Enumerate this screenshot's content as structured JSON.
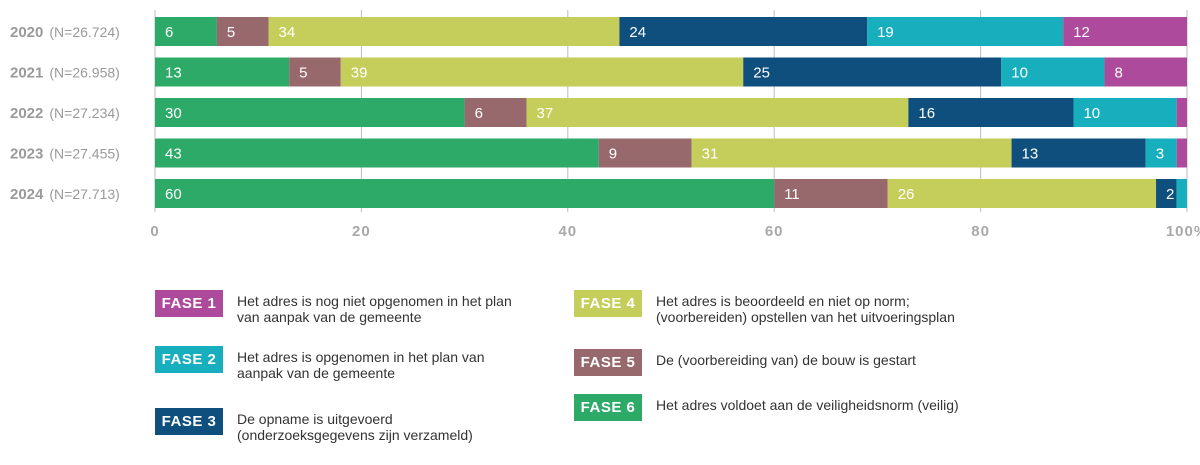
{
  "chart_data": {
    "type": "bar",
    "orientation": "horizontal",
    "stacked": true,
    "categories": [
      "2020",
      "2021",
      "2022",
      "2023",
      "2024"
    ],
    "category_notes": [
      "(N=26.724)",
      "(N=26.958)",
      "(N=27.234)",
      "(N=27.455)",
      "(N=27.713)"
    ],
    "series": [
      {
        "name": "FASE 6",
        "color": "#2daa68",
        "values": [
          6,
          13,
          30,
          43,
          60
        ]
      },
      {
        "name": "FASE 5",
        "color": "#98696c",
        "values": [
          5,
          5,
          6,
          9,
          11
        ]
      },
      {
        "name": "FASE 4",
        "color": "#c6ce5b",
        "values": [
          34,
          39,
          37,
          31,
          26
        ]
      },
      {
        "name": "FASE 3",
        "color": "#0f4f7e",
        "values": [
          24,
          25,
          16,
          13,
          2
        ]
      },
      {
        "name": "FASE 2",
        "color": "#17aebd",
        "values": [
          19,
          10,
          10,
          3,
          1
        ]
      },
      {
        "name": "FASE 1",
        "color": "#ad4a9c",
        "values": [
          12,
          8,
          1,
          1,
          0
        ]
      }
    ],
    "xlim": [
      0,
      100
    ],
    "xticks": [
      "0",
      "20",
      "40",
      "60",
      "80",
      "100%"
    ],
    "grid": true,
    "legend_position": "bottom"
  },
  "legend": [
    {
      "label": "FASE 1",
      "color": "#ad4a9c",
      "text": "Het adres is nog niet opgenomen in het plan van aanpak van de gemeente"
    },
    {
      "label": "FASE 2",
      "color": "#17aebd",
      "text": "Het adres is opgenomen in het plan van aanpak van de gemeente"
    },
    {
      "label": "FASE 3",
      "color": "#0f4f7e",
      "text": "De opname is uitgevoerd (onderzoeksgegevens zijn verzameld)"
    },
    {
      "label": "FASE 4",
      "color": "#c6ce5b",
      "text": "Het adres is beoordeeld en niet op norm; (voorbereiden) opstellen van het uitvoeringsplan"
    },
    {
      "label": "FASE 5",
      "color": "#98696c",
      "text": "De (voorbereiding van) de bouw is gestart"
    },
    {
      "label": "FASE 6",
      "color": "#2daa68",
      "text": "Het adres voldoet aan de veiligheidsnorm (veilig)"
    }
  ]
}
